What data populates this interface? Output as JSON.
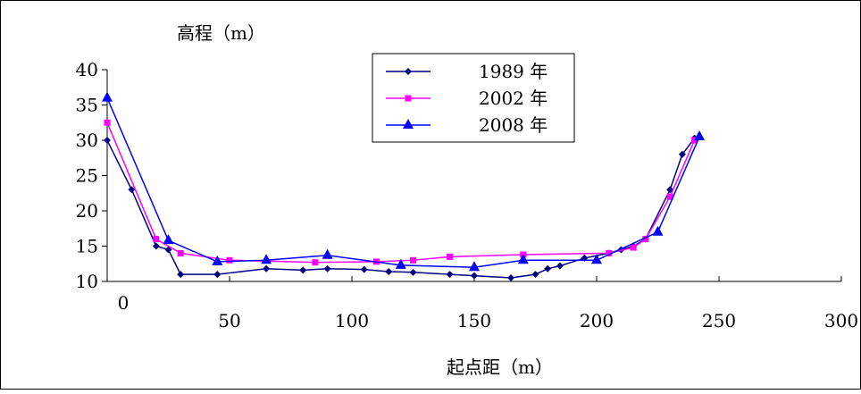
{
  "chart_data": {
    "type": "line",
    "ylabel": "高程（m）",
    "xlabel": "起点距（m）",
    "xlim": [
      0,
      300
    ],
    "ylim": [
      10,
      40
    ],
    "x_ticks": [
      0,
      50,
      100,
      150,
      200,
      250,
      300
    ],
    "y_ticks": [
      10,
      15,
      20,
      25,
      30,
      35,
      40
    ],
    "legend_position": "top-center",
    "grid": false,
    "series": [
      {
        "name": "1989 年",
        "color": "#000080",
        "marker": "diamond",
        "x": [
          0,
          10,
          20,
          25,
          30,
          45,
          65,
          80,
          90,
          105,
          115,
          125,
          140,
          150,
          165,
          175,
          180,
          185,
          195,
          205,
          210,
          215,
          220,
          230,
          235,
          240
        ],
        "y": [
          30,
          23,
          15,
          14.5,
          11,
          11,
          11.8,
          11.6,
          11.8,
          11.7,
          11.4,
          11.3,
          11,
          10.8,
          10.5,
          11,
          11.8,
          12.2,
          13.3,
          14,
          14.5,
          15,
          16,
          23,
          28,
          30.3
        ]
      },
      {
        "name": "2002 年",
        "color": "#ff00ff",
        "marker": "square",
        "x": [
          0,
          20,
          30,
          50,
          85,
          110,
          125,
          140,
          170,
          205,
          215,
          220,
          230,
          240
        ],
        "y": [
          32.5,
          16,
          14,
          13,
          12.7,
          12.8,
          13,
          13.5,
          13.8,
          14,
          14.8,
          16,
          22,
          30
        ]
      },
      {
        "name": "2008 年",
        "color": "#0000ff",
        "marker": "triangle",
        "x": [
          0,
          25,
          45,
          65,
          90,
          120,
          150,
          170,
          200,
          225,
          242
        ],
        "y": [
          36,
          15.8,
          12.8,
          13,
          13.7,
          12.3,
          12,
          13,
          13,
          17,
          30.5
        ]
      }
    ]
  }
}
